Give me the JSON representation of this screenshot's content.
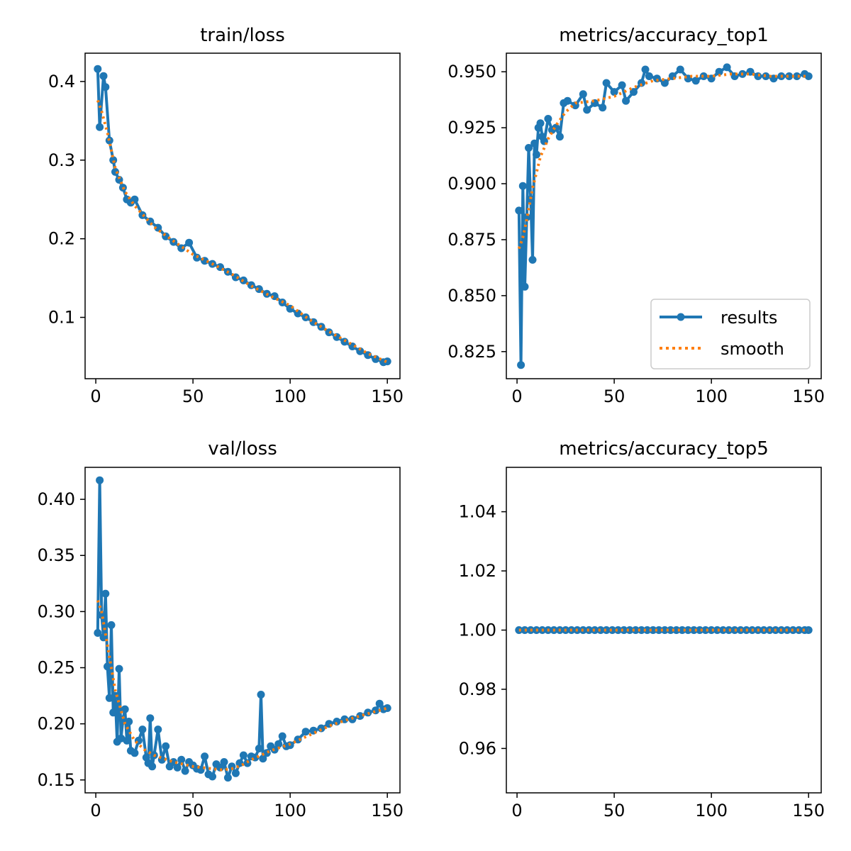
{
  "figure": {
    "legend": {
      "labels": [
        "results",
        "smooth"
      ],
      "placement": "lower-right",
      "panel": "metrics/accuracy_top1"
    },
    "colors": {
      "results": "#1f77b4",
      "smooth": "#ff7f0e",
      "axes": "#000000",
      "background": "#ffffff"
    }
  },
  "chart_data": [
    {
      "id": "train_loss",
      "type": "line",
      "title": "train/loss",
      "xlabel": "",
      "ylabel": "",
      "xlim": [
        -5.5,
        156.5
      ],
      "ylim": [
        0.022,
        0.436
      ],
      "xticks": [
        0,
        50,
        100,
        150
      ],
      "xtick_labels": [
        "0",
        "50",
        "100",
        "150"
      ],
      "yticks": [
        0.1,
        0.2,
        0.3,
        0.4
      ],
      "ytick_labels": [
        "0.1",
        "0.2",
        "0.3",
        "0.4"
      ],
      "grid": false,
      "series": [
        {
          "name": "results",
          "x": [
            1,
            2,
            4,
            5,
            7,
            9,
            10,
            12,
            14,
            16,
            18,
            20,
            24,
            28,
            32,
            36,
            40,
            44,
            48,
            52,
            56,
            60,
            64,
            68,
            72,
            76,
            80,
            84,
            88,
            92,
            96,
            100,
            104,
            108,
            112,
            116,
            120,
            124,
            128,
            132,
            136,
            140,
            144,
            148,
            150
          ],
          "values": [
            0.416,
            0.342,
            0.407,
            0.393,
            0.325,
            0.3,
            0.285,
            0.275,
            0.265,
            0.25,
            0.246,
            0.25,
            0.23,
            0.222,
            0.214,
            0.203,
            0.196,
            0.188,
            0.195,
            0.176,
            0.172,
            0.168,
            0.164,
            0.158,
            0.151,
            0.147,
            0.141,
            0.136,
            0.13,
            0.127,
            0.119,
            0.111,
            0.105,
            0.1,
            0.094,
            0.088,
            0.081,
            0.075,
            0.069,
            0.063,
            0.057,
            0.052,
            0.047,
            0.043,
            0.044
          ]
        },
        {
          "name": "smooth",
          "x": [
            1,
            3,
            6,
            10,
            15,
            20,
            30,
            40,
            50,
            60,
            70,
            80,
            90,
            100,
            110,
            120,
            130,
            140,
            150
          ],
          "values": [
            0.376,
            0.362,
            0.335,
            0.29,
            0.26,
            0.242,
            0.215,
            0.197,
            0.18,
            0.168,
            0.155,
            0.14,
            0.127,
            0.115,
            0.097,
            0.082,
            0.068,
            0.054,
            0.043
          ]
        }
      ]
    },
    {
      "id": "accuracy_top1",
      "type": "line",
      "title": "metrics/accuracy_top1",
      "xlabel": "",
      "ylabel": "",
      "xlim": [
        -5.5,
        156.5
      ],
      "ylim": [
        0.8129,
        0.9583
      ],
      "xticks": [
        0,
        50,
        100,
        150
      ],
      "xtick_labels": [
        "0",
        "50",
        "100",
        "150"
      ],
      "yticks": [
        0.825,
        0.85,
        0.875,
        0.9,
        0.925,
        0.95
      ],
      "ytick_labels": [
        "0.825",
        "0.850",
        "0.875",
        "0.900",
        "0.925",
        "0.950"
      ],
      "grid": false,
      "series": [
        {
          "name": "results",
          "x": [
            1,
            2,
            3,
            4,
            5,
            6,
            7,
            8,
            9,
            10,
            11,
            12,
            13,
            14,
            16,
            18,
            20,
            22,
            24,
            26,
            30,
            34,
            36,
            40,
            44,
            46,
            50,
            54,
            56,
            60,
            64,
            66,
            68,
            72,
            76,
            80,
            84,
            88,
            92,
            96,
            100,
            104,
            108,
            112,
            116,
            120,
            124,
            128,
            132,
            136,
            140,
            144,
            148,
            150
          ],
          "values": [
            0.888,
            0.819,
            0.899,
            0.854,
            0.885,
            0.916,
            0.893,
            0.866,
            0.918,
            0.913,
            0.925,
            0.927,
            0.921,
            0.919,
            0.929,
            0.924,
            0.925,
            0.921,
            0.936,
            0.937,
            0.935,
            0.94,
            0.933,
            0.936,
            0.934,
            0.945,
            0.941,
            0.944,
            0.937,
            0.941,
            0.945,
            0.951,
            0.948,
            0.947,
            0.945,
            0.948,
            0.951,
            0.947,
            0.946,
            0.948,
            0.947,
            0.95,
            0.952,
            0.948,
            0.949,
            0.95,
            0.948,
            0.948,
            0.947,
            0.948,
            0.948,
            0.948,
            0.949,
            0.948
          ]
        },
        {
          "name": "smooth",
          "x": [
            1,
            3,
            5,
            8,
            12,
            16,
            20,
            25,
            30,
            40,
            50,
            60,
            70,
            80,
            90,
            100,
            110,
            120,
            130,
            140,
            150
          ],
          "values": [
            0.871,
            0.876,
            0.884,
            0.898,
            0.912,
            0.92,
            0.926,
            0.932,
            0.936,
            0.937,
            0.939,
            0.943,
            0.946,
            0.947,
            0.948,
            0.948,
            0.949,
            0.949,
            0.948,
            0.948,
            0.948
          ]
        }
      ]
    },
    {
      "id": "val_loss",
      "type": "line",
      "title": "val/loss",
      "xlabel": "",
      "ylabel": "",
      "xlim": [
        -5.5,
        156.5
      ],
      "ylim": [
        0.1385,
        0.4285
      ],
      "xticks": [
        0,
        50,
        100,
        150
      ],
      "xtick_labels": [
        "0",
        "50",
        "100",
        "150"
      ],
      "yticks": [
        0.15,
        0.2,
        0.25,
        0.3,
        0.35,
        0.4
      ],
      "ytick_labels": [
        "0.15",
        "0.20",
        "0.25",
        "0.30",
        "0.35",
        "0.40"
      ],
      "grid": false,
      "series": [
        {
          "name": "results",
          "x": [
            1,
            2,
            3,
            4,
            5,
            6,
            7,
            8,
            9,
            10,
            11,
            12,
            13,
            14,
            15,
            16,
            17,
            18,
            20,
            22,
            24,
            26,
            27,
            28,
            29,
            30,
            32,
            34,
            36,
            38,
            40,
            42,
            44,
            46,
            48,
            50,
            52,
            54,
            56,
            58,
            60,
            62,
            64,
            66,
            68,
            70,
            72,
            74,
            76,
            78,
            80,
            82,
            84,
            85,
            86,
            88,
            90,
            92,
            94,
            96,
            98,
            100,
            104,
            108,
            112,
            116,
            120,
            124,
            128,
            132,
            136,
            140,
            144,
            146,
            148,
            150
          ],
          "values": [
            0.281,
            0.417,
            0.297,
            0.277,
            0.316,
            0.251,
            0.223,
            0.288,
            0.21,
            0.225,
            0.184,
            0.249,
            0.187,
            0.204,
            0.213,
            0.185,
            0.202,
            0.176,
            0.174,
            0.185,
            0.195,
            0.17,
            0.165,
            0.205,
            0.162,
            0.172,
            0.195,
            0.168,
            0.18,
            0.162,
            0.166,
            0.161,
            0.168,
            0.158,
            0.166,
            0.163,
            0.16,
            0.159,
            0.171,
            0.155,
            0.153,
            0.164,
            0.161,
            0.166,
            0.152,
            0.162,
            0.156,
            0.165,
            0.172,
            0.165,
            0.171,
            0.17,
            0.178,
            0.226,
            0.169,
            0.174,
            0.18,
            0.177,
            0.182,
            0.189,
            0.18,
            0.181,
            0.186,
            0.193,
            0.194,
            0.196,
            0.2,
            0.202,
            0.204,
            0.204,
            0.207,
            0.21,
            0.212,
            0.218,
            0.213,
            0.214
          ]
        },
        {
          "name": "smooth",
          "x": [
            1,
            3,
            6,
            10,
            15,
            20,
            25,
            30,
            40,
            50,
            60,
            65,
            70,
            75,
            80,
            90,
            100,
            110,
            120,
            130,
            140,
            150
          ],
          "values": [
            0.31,
            0.3,
            0.27,
            0.23,
            0.2,
            0.185,
            0.177,
            0.172,
            0.166,
            0.162,
            0.16,
            0.159,
            0.16,
            0.163,
            0.168,
            0.176,
            0.182,
            0.19,
            0.198,
            0.204,
            0.209,
            0.214
          ]
        }
      ]
    },
    {
      "id": "accuracy_top5",
      "type": "line",
      "title": "metrics/accuracy_top5",
      "xlabel": "",
      "ylabel": "",
      "xlim": [
        -5.5,
        156.5
      ],
      "ylim": [
        0.945,
        1.055
      ],
      "xticks": [
        0,
        50,
        100,
        150
      ],
      "xtick_labels": [
        "0",
        "50",
        "100",
        "150"
      ],
      "yticks": [
        0.96,
        0.98,
        1.0,
        1.02,
        1.04
      ],
      "ytick_labels": [
        "0.96",
        "0.98",
        "1.00",
        "1.02",
        "1.04"
      ],
      "grid": false,
      "series": [
        {
          "name": "results",
          "x": [
            1,
            4,
            7,
            10,
            13,
            16,
            19,
            22,
            25,
            28,
            31,
            34,
            37,
            40,
            43,
            46,
            49,
            52,
            55,
            58,
            61,
            64,
            67,
            70,
            73,
            76,
            79,
            82,
            85,
            88,
            91,
            94,
            97,
            100,
            103,
            106,
            109,
            112,
            115,
            118,
            121,
            124,
            127,
            130,
            133,
            136,
            139,
            142,
            145,
            148,
            150
          ],
          "values": [
            1,
            1,
            1,
            1,
            1,
            1,
            1,
            1,
            1,
            1,
            1,
            1,
            1,
            1,
            1,
            1,
            1,
            1,
            1,
            1,
            1,
            1,
            1,
            1,
            1,
            1,
            1,
            1,
            1,
            1,
            1,
            1,
            1,
            1,
            1,
            1,
            1,
            1,
            1,
            1,
            1,
            1,
            1,
            1,
            1,
            1,
            1,
            1,
            1,
            1,
            1
          ]
        },
        {
          "name": "smooth",
          "x": [
            1,
            150
          ],
          "values": [
            1,
            1
          ]
        }
      ]
    }
  ]
}
